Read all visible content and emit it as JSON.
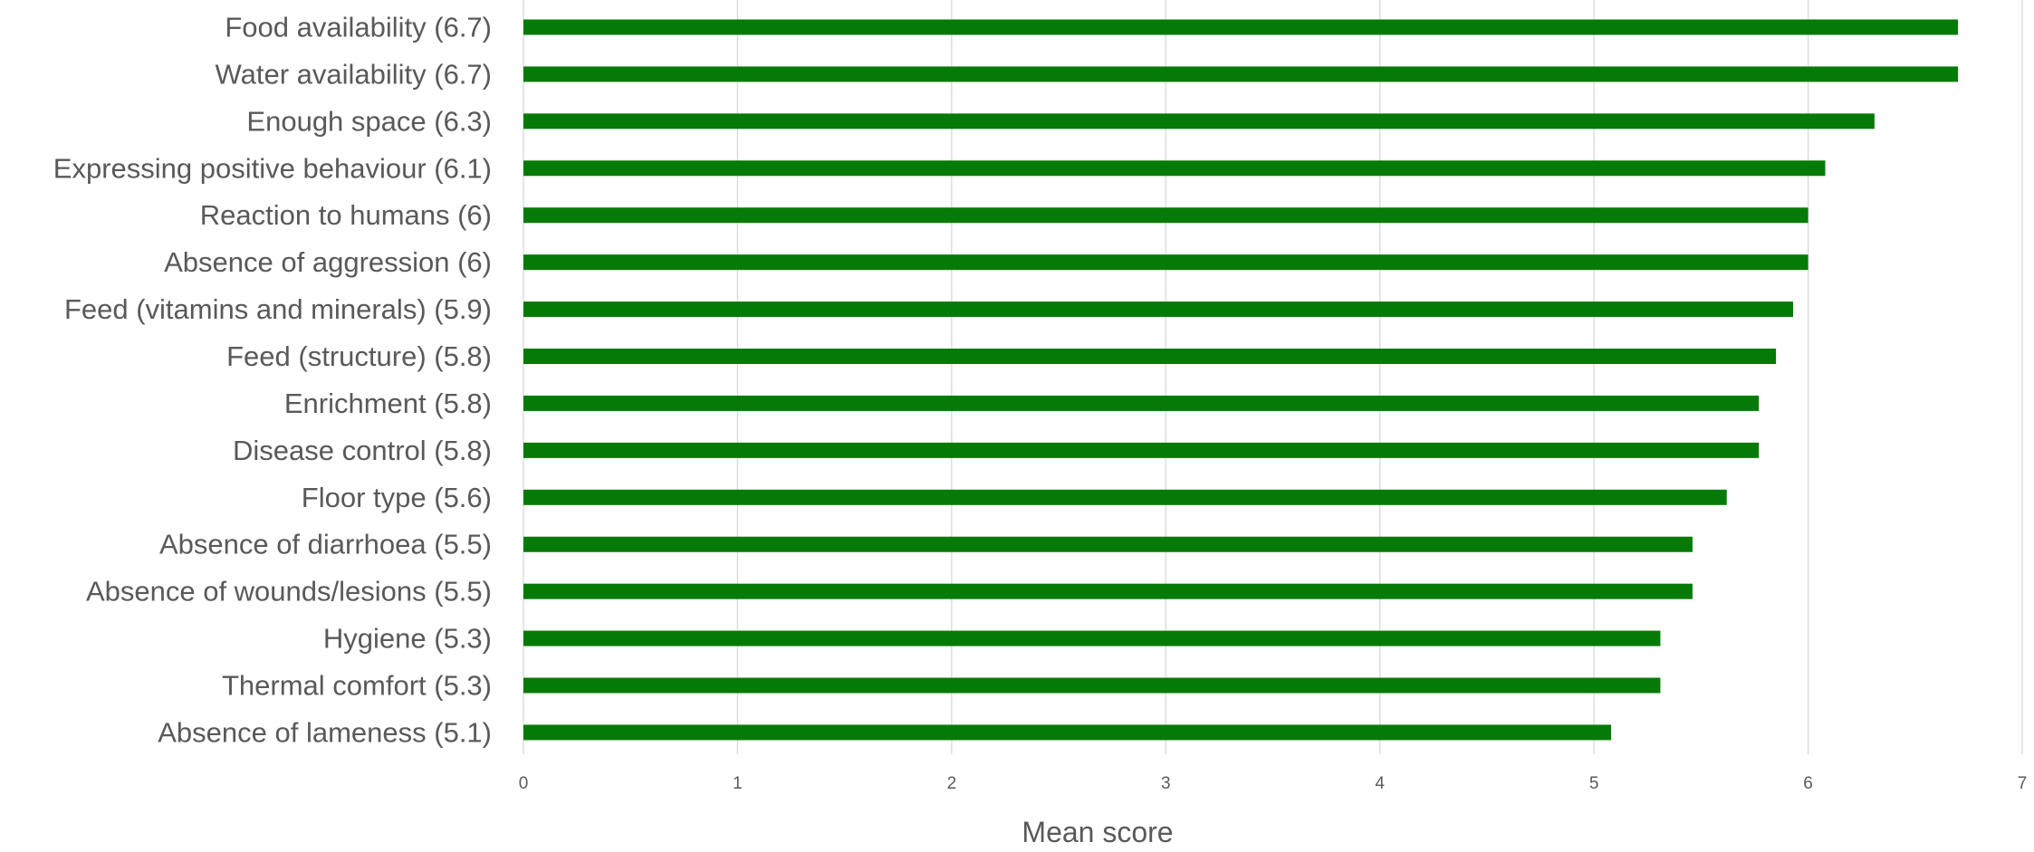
{
  "chart_data": {
    "type": "bar",
    "orientation": "horizontal",
    "title": "",
    "xlabel": "Mean score",
    "ylabel": "",
    "xlim": [
      0,
      7
    ],
    "x_ticks": [
      "0",
      "1",
      "2",
      "3",
      "4",
      "5",
      "6",
      "7"
    ],
    "grid": true,
    "legend": "none",
    "bar_color": "#067A06",
    "grid_color": "#D9D9D9",
    "text_color": "#595959",
    "categories": [
      "Food availability (6.7)",
      "Water availability (6.7)",
      "Enough space (6.3)",
      "Expressing positive behaviour (6.1)",
      "Reaction to humans (6)",
      "Absence of aggression (6)",
      "Feed (vitamins and minerals) (5.9)",
      "Feed (structure) (5.8)",
      "Enrichment (5.8)",
      "Disease control (5.8)",
      "Floor type (5.6)",
      "Absence of diarrhoea (5.5)",
      "Absence of wounds/lesions (5.5)",
      "Hygiene (5.3)",
      "Thermal comfort (5.3)",
      "Absence of lameness (5.1)"
    ],
    "values": [
      6.7,
      6.7,
      6.31,
      6.08,
      6.0,
      6.0,
      5.93,
      5.85,
      5.77,
      5.77,
      5.62,
      5.46,
      5.46,
      5.31,
      5.31,
      5.08
    ]
  }
}
